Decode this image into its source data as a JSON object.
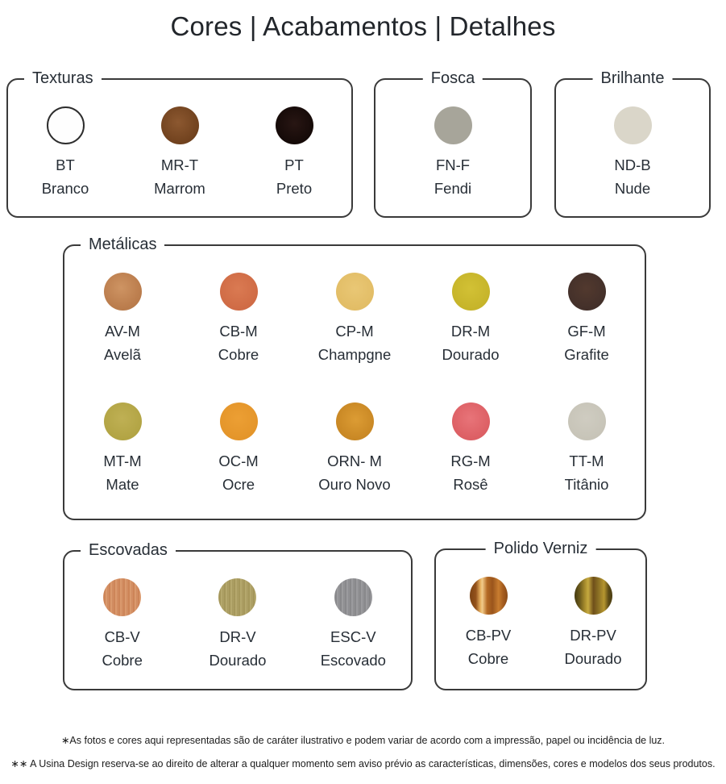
{
  "title": "Cores | Acabamentos | Detalhes",
  "groups": {
    "texturas": {
      "label": "Texturas",
      "swatches": [
        {
          "code": "BT",
          "name": "Branco",
          "color": "#FEFEFE",
          "css": "background:#FEFEFE;border:2px solid #2D2D2D"
        },
        {
          "code": "MR-T",
          "name": "Marrom",
          "color": "#7B4A27",
          "css": "background:radial-gradient(circle at 45% 42%, #8C5830 0%, #72431F 65%, #603818 100%)"
        },
        {
          "code": "PT",
          "name": "Preto",
          "color": "#160B08",
          "css": "background:radial-gradient(circle at 50% 45%, #281613 0%, #150A08 70%)"
        }
      ]
    },
    "fosca": {
      "label": "Fosca",
      "swatches": [
        {
          "code": "FN-F",
          "name": "Fendi",
          "color": "#A7A59A",
          "css": "background:#A7A59A"
        }
      ]
    },
    "brilhante": {
      "label": "Brilhante",
      "swatches": [
        {
          "code": "ND-B",
          "name": "Nude",
          "color": "#DAD6C9",
          "css": "background:#DAD6C9"
        }
      ]
    },
    "metalicas": {
      "label": "Metálicas",
      "swatches": [
        {
          "code": "AV-M",
          "name": "Avelã",
          "color": "#BC7E4E",
          "css": "background:radial-gradient(circle at 45% 40%, #CE9463 0%, #BC7E4E 60%, #B07446 100%)"
        },
        {
          "code": "CB-M",
          "name": "Cobre",
          "color": "#D06C46",
          "css": "background:radial-gradient(circle at 48% 42%, #DA7A52 0%, #D06C46 65%, #C96543 100%)"
        },
        {
          "code": "CP-M",
          "name": "Champgne",
          "color": "#E2BD66",
          "css": "background:radial-gradient(circle at 50% 42%, #E9C775 0%, #E2BD66 70%)"
        },
        {
          "code": "DR-M",
          "name": "Dourado",
          "color": "#C6B42A",
          "css": "background:radial-gradient(circle at 48% 42%, #D2C135 0%, #C6B42A 70%)"
        },
        {
          "code": "GF-M",
          "name": "Grafite",
          "color": "#43302A",
          "css": "background:radial-gradient(circle at 48% 42%, #52392E 0%, #43302A 70%)"
        },
        {
          "code": "MT-M",
          "name": "Mate",
          "color": "#B2A444",
          "css": "background:radial-gradient(circle at 48% 42%, #BFB054 0%, #B2A444 70%)"
        },
        {
          "code": "OC-M",
          "name": "Ocre",
          "color": "#E4952A",
          "css": "background:radial-gradient(circle at 48% 42%, #EC9F34 0%, #E4952A 70%)"
        },
        {
          "code": "ORN- M",
          "name": "Ouro Novo",
          "color": "#CB8A26",
          "css": "background:radial-gradient(circle at 52% 45%, #DC9C34 0%, #CB8A26 60%, #C08122 100%)"
        },
        {
          "code": "RG-M",
          "name": "Rosê",
          "color": "#DD6065",
          "css": "background:radial-gradient(circle at 48% 42%, #E87479 0%, #DD6065 65%, #D75A60 100%)"
        },
        {
          "code": "TT-M",
          "name": "Titânio",
          "color": "#C7C4B8",
          "css": "background:radial-gradient(circle at 48% 42%, #CFCCC1 0%, #C7C4B8 70%)"
        }
      ]
    },
    "escovadas": {
      "label": "Escovadas",
      "swatches": [
        {
          "code": "CB-V",
          "name": "Cobre",
          "color": "#CB8558",
          "css": "background:repeating-linear-gradient(90deg, #D9936A 0px, #C77E50 2px, #E0A176 4px, #CB8558 6px)"
        },
        {
          "code": "DR-V",
          "name": "Dourado",
          "color": "#A89A60",
          "css": "background:repeating-linear-gradient(90deg, #B3A56B 0px, #9E9054 2px, #BCAF74 4px, #A2945A 6px)"
        },
        {
          "code": "ESC-V",
          "name": "Escovado",
          "color": "#8D8D90",
          "css": "background:repeating-linear-gradient(90deg, #97979A 0px, #828285 2px, #A2A2A5 4px, #88888B 6px)"
        }
      ]
    },
    "polido": {
      "label": "Polido Verniz",
      "swatches": [
        {
          "code": "CB-PV",
          "name": "Cobre",
          "color": "#A55C1E",
          "css": "background:linear-gradient(90deg, #7C4414 0%, #93511B 16%, #E7B05F 28%, #F2CC8A 33%, #B46A24 46%, #9A551C 60%, #C87D30 76%, #A55C1E 88%, #8A4B18 100%)"
        },
        {
          "code": "DR-PV",
          "name": "Dourado",
          "color": "#8B7024",
          "css": "background:linear-gradient(90deg, #44390F 0%, #6C5B1C 14%, #A98E2E 28%, #C6AA40 36%, #6F501A 50%, #8B7024 63%, #B6962F 78%, #5C4B16 90%, #4A3D12 100%)"
        }
      ]
    }
  },
  "footnotes": {
    "line1": "∗As fotos e cores aqui representadas são de caráter ilustrativo e podem variar de acordo com a impressão, papel ou incidência de luz.",
    "line2": "∗∗ A Usina Design reserva-se ao direito de alterar a qualquer momento sem aviso prévio as características, dimensões, cores e modelos dos seus produtos."
  }
}
